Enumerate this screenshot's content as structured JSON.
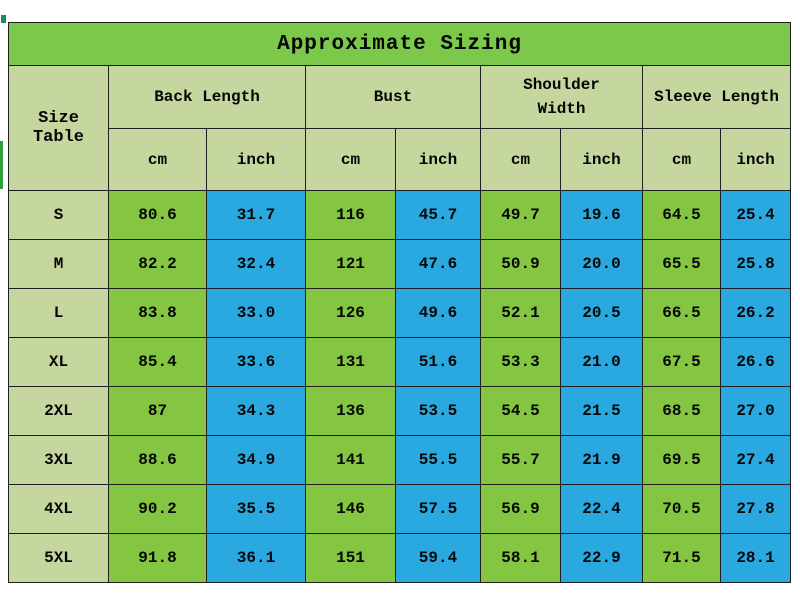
{
  "title": "Approximate Sizing",
  "corner_label": "Size Table",
  "units": {
    "cm": "cm",
    "inch": "inch"
  },
  "groups": [
    {
      "label": "Back Length"
    },
    {
      "label": "Bust"
    },
    {
      "label": "Shoulder Width"
    },
    {
      "label": "Sleeve Length"
    }
  ],
  "colors": {
    "title_bg": "#7cc84a",
    "header_bg": "#c5d79e",
    "cm_cell_bg": "#84c541",
    "inch_cell_bg": "#29a9e0",
    "border": "#1f1f1f",
    "edge_artifact_green": "#2f9e3f",
    "edge_artifact_teal": "#1e8a63"
  },
  "chart_data": {
    "type": "table",
    "title": "Approximate Sizing",
    "columns": [
      "Size",
      "Back Length cm",
      "Back Length inch",
      "Bust cm",
      "Bust inch",
      "Shoulder Width cm",
      "Shoulder Width inch",
      "Sleeve Length cm",
      "Sleeve Length inch"
    ],
    "rows": [
      [
        "S",
        "80.6",
        "31.7",
        "116",
        "45.7",
        "49.7",
        "19.6",
        "64.5",
        "25.4"
      ],
      [
        "M",
        "82.2",
        "32.4",
        "121",
        "47.6",
        "50.9",
        "20.0",
        "65.5",
        "25.8"
      ],
      [
        "L",
        "83.8",
        "33.0",
        "126",
        "49.6",
        "52.1",
        "20.5",
        "66.5",
        "26.2"
      ],
      [
        "XL",
        "85.4",
        "33.6",
        "131",
        "51.6",
        "53.3",
        "21.0",
        "67.5",
        "26.6"
      ],
      [
        "2XL",
        "87",
        "34.3",
        "136",
        "53.5",
        "54.5",
        "21.5",
        "68.5",
        "27.0"
      ],
      [
        "3XL",
        "88.6",
        "34.9",
        "141",
        "55.5",
        "55.7",
        "21.9",
        "69.5",
        "27.4"
      ],
      [
        "4XL",
        "90.2",
        "35.5",
        "146",
        "57.5",
        "56.9",
        "22.4",
        "70.5",
        "27.8"
      ],
      [
        "5XL",
        "91.8",
        "36.1",
        "151",
        "59.4",
        "58.1",
        "22.9",
        "71.5",
        "28.1"
      ]
    ]
  }
}
